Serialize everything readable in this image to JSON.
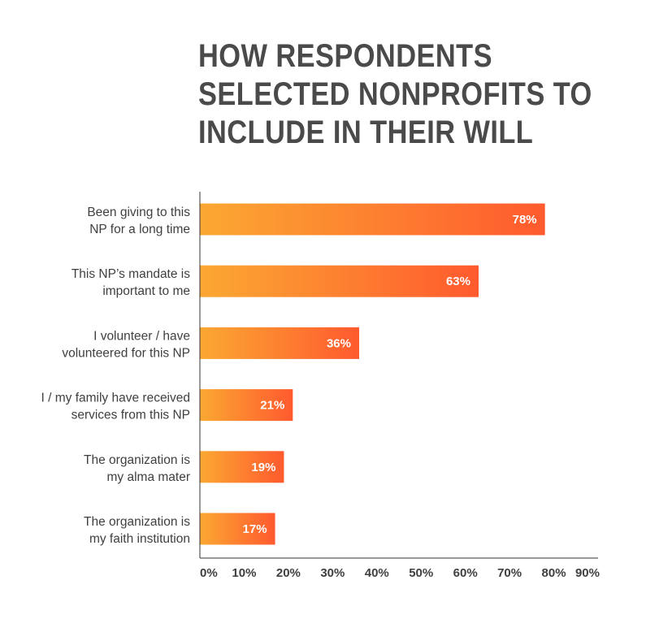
{
  "title_lines": [
    "HOW RESPONDENTS",
    "SELECTED NONPROFITS TO",
    "INCLUDE IN THEIR WILL"
  ],
  "colors": {
    "bar_start": "#fba832",
    "bar_end": "#ff5a2e",
    "axis": "#333333",
    "text": "#3f3f40"
  },
  "chart_data": {
    "type": "bar",
    "orientation": "horizontal",
    "title": "HOW RESPONDENTS SELECTED NONPROFITS TO INCLUDE IN THEIR WILL",
    "categories": [
      [
        "Been giving to this",
        "NP for a long time"
      ],
      [
        "This NP’s mandate is",
        "important to me"
      ],
      [
        "I volunteer / have",
        "volunteered for this NP"
      ],
      [
        "I / my family have received",
        "services from this NP"
      ],
      [
        "The organization is",
        "my alma mater"
      ],
      [
        "The organization is",
        "my faith institution"
      ]
    ],
    "values": [
      78,
      63,
      36,
      21,
      19,
      17
    ],
    "value_labels": [
      "78%",
      "63%",
      "36%",
      "21%",
      "19%",
      "17%"
    ],
    "xlim": [
      0,
      90
    ],
    "x_ticks": [
      "0%",
      "10%",
      "20%",
      "30%",
      "40%",
      "50%",
      "60%",
      "70%",
      "80%",
      "90%"
    ],
    "xlabel": "",
    "ylabel": "",
    "grid": false
  }
}
